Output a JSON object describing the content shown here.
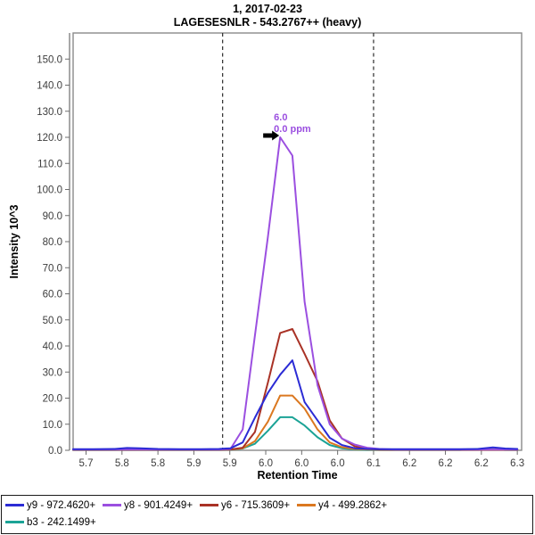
{
  "chart_data": {
    "type": "line",
    "title": "1, 2017-02-23",
    "subtitle": "LAGESESNLR - 543.2767++ (heavy)",
    "xlabel": "Retention Time",
    "ylabel": "Intensity 10^3",
    "xlim": [
      5.682,
      6.306
    ],
    "ylim": [
      0,
      160
    ],
    "grid": false,
    "legend_position": "bottom",
    "x_tick_values": [
      5.7,
      5.75,
      5.8,
      5.85,
      5.9,
      5.95,
      6.0,
      6.05,
      6.1,
      6.15,
      6.2,
      6.25,
      6.3
    ],
    "x_tick_labels": [
      "5.7",
      "5.8",
      "5.8",
      "5.9",
      "5.9",
      "6.0",
      "6.0",
      "6.0",
      "6.1",
      "6.2",
      "6.2",
      "6.2",
      "6.3"
    ],
    "y_tick_values": [
      0,
      10,
      20,
      30,
      40,
      50,
      60,
      70,
      80,
      90,
      100,
      110,
      120,
      130,
      140,
      150
    ],
    "y_tick_labels": [
      "0.0",
      "10.0",
      "20.0",
      "30.0",
      "40.0",
      "50.0",
      "60.0",
      "70.0",
      "80.0",
      "90.0",
      "100.0",
      "110.0",
      "120.0",
      "130.0",
      "140.0",
      "150.0"
    ],
    "peak_boundaries": [
      5.89,
      6.1
    ],
    "annotation": {
      "line1": "6.0",
      "line2": "0.0 ppm",
      "x": 5.97,
      "y": 120
    },
    "x": [
      5.682,
      5.71,
      5.74,
      5.757,
      5.775,
      5.8,
      5.83,
      5.86,
      5.885,
      5.901,
      5.918,
      5.935,
      5.953,
      5.97,
      5.987,
      6.004,
      6.022,
      6.039,
      6.056,
      6.074,
      6.091,
      6.108,
      6.13,
      6.16,
      6.19,
      6.22,
      6.245,
      6.266,
      6.283,
      6.3
    ],
    "series": [
      {
        "id": "y9",
        "label": "y9 - 972.4620+",
        "color": "#2B2BD5",
        "values": [
          0.4,
          0.4,
          0.5,
          0.9,
          0.8,
          0.5,
          0.4,
          0.4,
          0.5,
          0.8,
          3,
          12.5,
          22,
          29,
          34.5,
          18.5,
          11.5,
          4.8,
          2,
          0.8,
          0.5,
          0.4,
          0.4,
          0.4,
          0.4,
          0.4,
          0.5,
          1.1,
          0.7,
          0.5
        ]
      },
      {
        "id": "y8",
        "label": "y8 - 901.4249+",
        "color": "#9B4FE0",
        "values": [
          0.3,
          0.3,
          0.3,
          0.3,
          0.3,
          0.3,
          0.3,
          0.3,
          0.3,
          0.5,
          8,
          44,
          82,
          120,
          113,
          57,
          25,
          10,
          4.5,
          2.2,
          1,
          0.5,
          0.3,
          0.3,
          0.3,
          0.3,
          0.3,
          0.3,
          0.3,
          0.3
        ]
      },
      {
        "id": "y6",
        "label": "y6 - 715.3609+",
        "color": "#A93226",
        "values": [
          0.2,
          0.2,
          0.2,
          0.2,
          0.2,
          0.2,
          0.2,
          0.2,
          0.2,
          0.3,
          1,
          7,
          26,
          45,
          46.5,
          37,
          26.5,
          11.5,
          4.5,
          1.5,
          0.6,
          0.3,
          0.2,
          0.2,
          0.2,
          0.2,
          0.2,
          0.2,
          0.2,
          0.2
        ]
      },
      {
        "id": "y4",
        "label": "y4 - 499.2862+",
        "color": "#DB7820",
        "values": [
          0.2,
          0.2,
          0.2,
          0.2,
          0.2,
          0.2,
          0.2,
          0.2,
          0.2,
          0.3,
          0.8,
          3.5,
          11,
          21,
          21,
          16,
          8,
          3,
          1.2,
          0.5,
          0.3,
          0.2,
          0.2,
          0.2,
          0.2,
          0.2,
          0.2,
          0.2,
          0.2,
          0.2
        ]
      },
      {
        "id": "b3",
        "label": "b3 - 242.1499+",
        "color": "#1BA396",
        "values": [
          0.15,
          0.15,
          0.15,
          0.15,
          0.15,
          0.15,
          0.15,
          0.15,
          0.15,
          0.2,
          0.7,
          2.5,
          7.5,
          12.7,
          12.7,
          9.5,
          5,
          2,
          0.8,
          0.3,
          0.15,
          0.15,
          0.15,
          0.15,
          0.15,
          0.15,
          0.5,
          0.4,
          0.15,
          0.15
        ]
      }
    ],
    "draw_order": [
      4,
      3,
      2,
      1,
      0
    ],
    "legend_rows": [
      [
        0,
        1,
        2,
        3
      ],
      [
        4
      ]
    ]
  }
}
